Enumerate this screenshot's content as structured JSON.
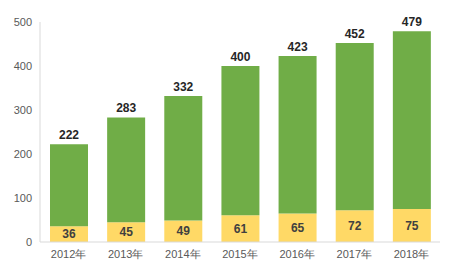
{
  "chart_data": {
    "type": "bar",
    "stacked": true,
    "categories": [
      "2012年",
      "2013年",
      "2014年",
      "2015年",
      "2016年",
      "2017年",
      "2018年"
    ],
    "series": [
      {
        "color": "#ffd966",
        "values": [
          36,
          45,
          49,
          61,
          65,
          72,
          75
        ]
      },
      {
        "color": "#70ad47",
        "values": [
          186,
          238,
          283,
          339,
          358,
          380,
          404
        ]
      }
    ],
    "totals": [
      222,
      283,
      332,
      400,
      423,
      452,
      479
    ],
    "ylim": [
      0,
      500
    ],
    "yticks": [
      0,
      100,
      200,
      300,
      400,
      500
    ],
    "grid": false,
    "data_labels": true
  }
}
